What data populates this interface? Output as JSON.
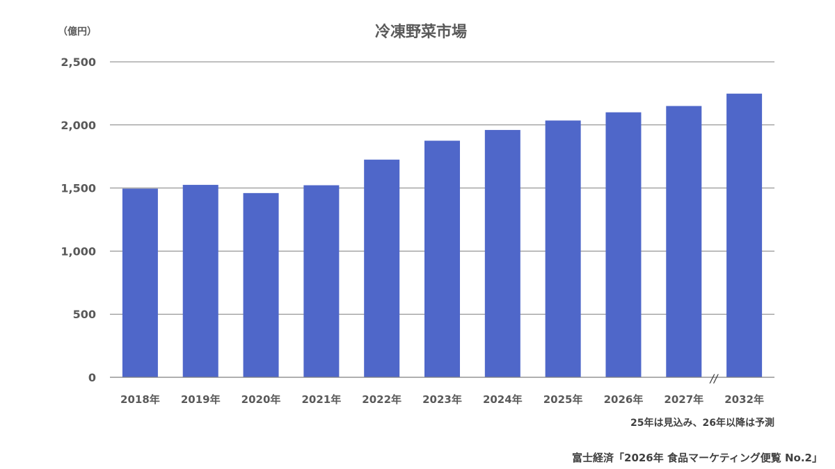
{
  "chart_data": {
    "type": "bar",
    "title": "冷凍野菜市場",
    "unit_label": "（億円）",
    "categories": [
      "2018年",
      "2019年",
      "2020年",
      "2021年",
      "2022年",
      "2023年",
      "2024年",
      "2025年",
      "2026年",
      "2027年",
      "2032年"
    ],
    "values": [
      1495,
      1525,
      1460,
      1522,
      1725,
      1875,
      1960,
      2035,
      2100,
      2150,
      2248
    ],
    "ylim": [
      0,
      2500
    ],
    "yticks": [
      0,
      500,
      1000,
      1500,
      2000,
      2500
    ],
    "ytick_labels": [
      "0",
      "500",
      "1,000",
      "1,500",
      "2,000",
      "2,500"
    ],
    "grid": true,
    "bar_color": "#4F67C9",
    "axis_break_mark": "//",
    "note": "25年は見込み、26年以降は予測",
    "source": "富士経済「2026年 食品マーケティング便覧 No.2」"
  }
}
